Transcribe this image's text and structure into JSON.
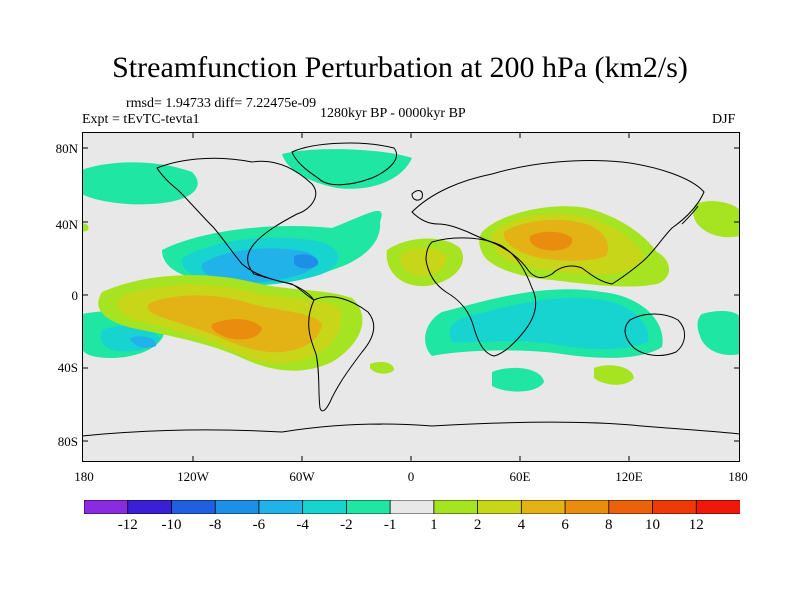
{
  "title": "Streamfunction Perturbation at 200 hPa (km2/s)",
  "stats": "rmsd= 1.94733 diff= 7.22475e-09",
  "experiment": "Expt = tEvTC-tevta1",
  "period": "1280kyr BP - 0000kyr BP",
  "season": "DJF",
  "lat_labels": [
    "80N",
    "40N",
    "0",
    "40S",
    "80S"
  ],
  "lon_labels": [
    "180",
    "120W",
    "60W",
    "0",
    "60E",
    "120E",
    "180"
  ],
  "colorbar": {
    "labels": [
      "-12",
      "-10",
      "-8",
      "-6",
      "-4",
      "-2",
      "-1",
      "1",
      "2",
      "4",
      "6",
      "8",
      "10",
      "12"
    ],
    "colors": [
      "#8a2be2",
      "#3a1fd6",
      "#1f5fe0",
      "#1e8fe6",
      "#20b2e8",
      "#18d4d0",
      "#20e6a4",
      "#e8e8e8",
      "#a6e320",
      "#c8d61a",
      "#e3b214",
      "#ea8c0e",
      "#ec620a",
      "#ee3a08",
      "#f0180a"
    ]
  },
  "field_colors": {
    "background": "#e8e8e8",
    "neg1": "#20e6a4",
    "neg2": "#18d4d0",
    "neg4": "#20b2e8",
    "neg6": "#1e8fe6",
    "pos1": "#a6e320",
    "pos2": "#c8d61a",
    "pos4": "#e3b214",
    "pos6": "#ea8c0e"
  }
}
